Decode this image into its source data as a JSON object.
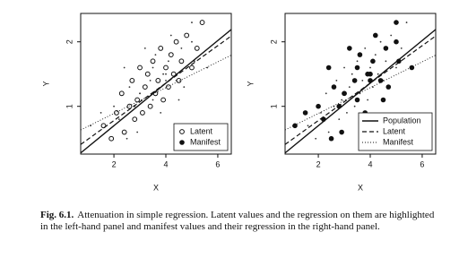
{
  "chart_data": {
    "type": "scatter",
    "xlabel": "X",
    "ylabel": "Y",
    "xlim": [
      0.72,
      6.52
    ],
    "ylim": [
      0.26,
      2.44
    ],
    "xticks": [
      2,
      4,
      6
    ],
    "yticks": [
      1,
      2
    ],
    "series": [
      {
        "name": "Latent",
        "x": [
          1.6,
          1.9,
          2.1,
          2.3,
          2.4,
          2.6,
          2.7,
          2.8,
          2.9,
          3.0,
          3.1,
          3.2,
          3.3,
          3.4,
          3.5,
          3.6,
          3.7,
          3.8,
          3.9,
          4.0,
          4.1,
          4.2,
          4.3,
          4.4,
          4.5,
          4.6,
          4.8,
          5.0,
          5.2,
          5.4
        ],
        "y": [
          0.7,
          0.5,
          0.9,
          1.2,
          0.6,
          1.0,
          1.4,
          0.8,
          1.1,
          1.6,
          0.9,
          1.3,
          1.5,
          1.0,
          1.7,
          1.2,
          1.4,
          1.9,
          1.1,
          1.6,
          1.3,
          1.8,
          1.5,
          2.0,
          1.4,
          1.7,
          2.1,
          1.6,
          1.9,
          2.3
        ]
      },
      {
        "name": "Manifest",
        "x": [
          1.1,
          2.5,
          1.5,
          3.0,
          2.9,
          2.0,
          3.4,
          2.2,
          3.5,
          2.4,
          3.8,
          2.6,
          4.0,
          2.8,
          4.1,
          3.0,
          4.4,
          3.2,
          4.5,
          3.5,
          4.7,
          3.6,
          3.9,
          5.0,
          4.0,
          5.1,
          4.2,
          5.6,
          4.6,
          5.0
        ],
        "y": [
          0.7,
          0.5,
          0.9,
          1.2,
          0.6,
          1.0,
          1.4,
          0.8,
          1.1,
          1.6,
          0.9,
          1.3,
          1.5,
          1.0,
          1.7,
          1.2,
          1.4,
          1.9,
          1.1,
          1.6,
          1.3,
          1.8,
          1.5,
          2.0,
          1.4,
          1.7,
          2.1,
          1.6,
          1.9,
          2.3
        ]
      }
    ],
    "lines": [
      {
        "name": "Population",
        "intercept": 0.04,
        "slope": 0.33,
        "style": "solid"
      },
      {
        "name": "Latent",
        "intercept": 0.2,
        "slope": 0.29,
        "style": "dashed"
      },
      {
        "name": "Manifest",
        "intercept": 0.49,
        "slope": 0.2,
        "style": "dotted"
      }
    ],
    "panels": [
      {
        "highlight": "Latent",
        "legend": [
          "Latent",
          "Manifest"
        ],
        "legend_style": "points"
      },
      {
        "highlight": "Manifest",
        "legend": [
          "Population",
          "Latent",
          "Manifest"
        ],
        "legend_style": "lines"
      }
    ]
  },
  "caption": {
    "label": "Fig. 6.1.",
    "text": "Attenuation in simple regression. Latent values and the regression on them are highlighted in the left-hand panel and manifest values and their regression in the right-hand panel."
  }
}
